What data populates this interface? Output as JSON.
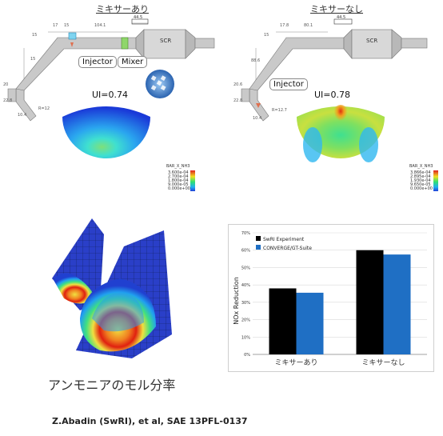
{
  "top_left": {
    "title": "ミキサーあり",
    "ui": "UI=0.74",
    "callout_injector": "Injector",
    "callout_mixer": "Mixer",
    "scr_label": "SCR",
    "dim_label": "44.5"
  },
  "top_right": {
    "title": "ミキサーなし",
    "ui": "UI=0.78",
    "callout_injector": "Injector",
    "scr_label": "SCR",
    "dim_label": "44.5"
  },
  "legend": {
    "title": "BAR_X_NH3",
    "left_values": [
      "3.600e-04",
      "2.700e-04",
      "1.800e-04",
      "9.000e-05",
      "0.000e+00"
    ],
    "right_values": [
      "3.866e-04",
      "2.895e-04",
      "1.930e-04",
      "9.650e-05",
      "0.000e+00"
    ]
  },
  "bottom_left_caption": "アンモニアのモル分率",
  "citation": "Z.Abadin (SwRI), et al, SAE 13PFL-0137",
  "chart_data": {
    "type": "bar",
    "categories": [
      "ミキサーあり",
      "ミキサーなし"
    ],
    "series": [
      {
        "name": "SwRI Experiment",
        "values": [
          38,
          60
        ],
        "color": "#000000"
      },
      {
        "name": "CONVERGE/GT-Suite",
        "values": [
          35.5,
          57.5
        ],
        "color": "#1f6fc4"
      }
    ],
    "ylabel": "NOx Reduction",
    "ylim": [
      0,
      70
    ],
    "yticks": [
      "0%",
      "10%",
      "20%",
      "30%",
      "40%",
      "50%",
      "60%",
      "70%"
    ],
    "legend_position": "top-left"
  }
}
